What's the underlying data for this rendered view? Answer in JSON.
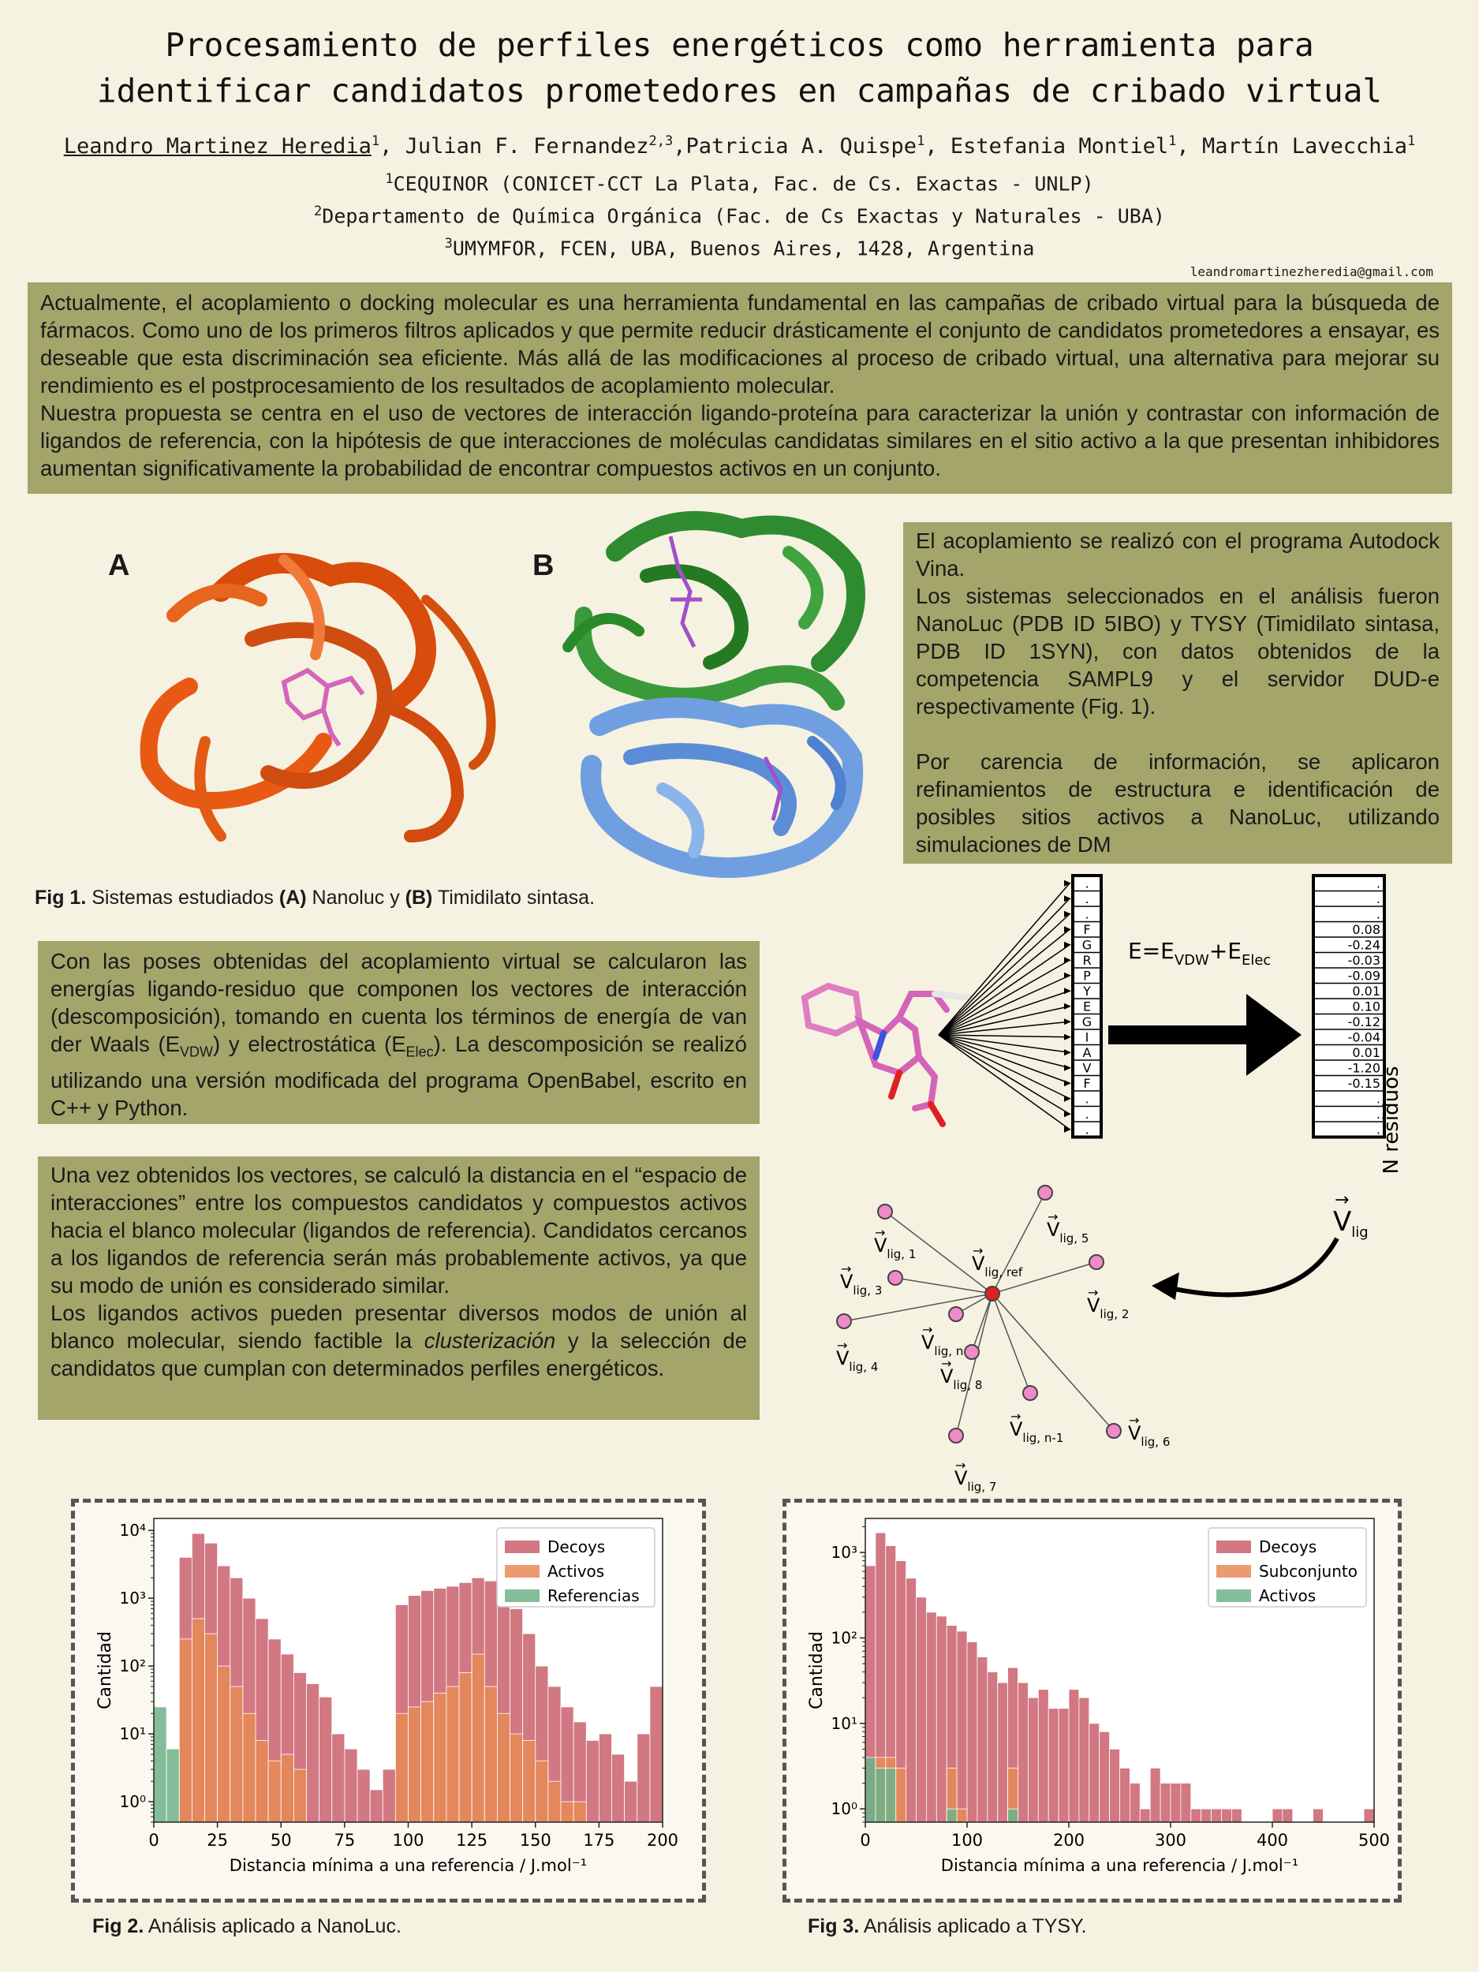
{
  "title": {
    "line1": "Procesamiento de perfiles energéticos como herramienta para",
    "line2": "identificar candidatos prometedores en campañas de cribado virtual"
  },
  "authors": [
    {
      "name": "Leandro Martinez Heredia",
      "sup": "1"
    },
    {
      "name": "Julian F. Fernandez",
      "sup": "2,3"
    },
    {
      "name": "Patricia A. Quispe",
      "sup": "1"
    },
    {
      "name": "Estefania Montiel",
      "sup": "1"
    },
    {
      "name": "Martín Lavecchia",
      "sup": "1"
    }
  ],
  "affiliations": [
    {
      "sup": "1",
      "text": "CEQUINOR (CONICET-CCT La Plata, Fac. de Cs. Exactas - UNLP)"
    },
    {
      "sup": "2",
      "text": "Departamento de Química Orgánica (Fac. de Cs Exactas y Naturales - UBA)"
    },
    {
      "sup": "3",
      "text": "UMYMFOR, FCEN, UBA, Buenos Aires, 1428, Argentina"
    }
  ],
  "email": "leandromartinezheredia@gmail.com",
  "intro": {
    "p1": "Actualmente, el acoplamiento o docking molecular es una herramienta fundamental en las campañas de cribado virtual para la búsqueda de fármacos. Como uno de los primeros filtros aplicados y que permite reducir drásticamente el conjunto de candidatos prometedores a ensayar, es deseable que esta discriminación sea eficiente. Más allá de las modificaciones al proceso de cribado virtual, una alternativa para mejorar su rendimiento es el postprocesamiento de los resultados de acoplamiento molecular.",
    "p2": "Nuestra propuesta se centra en el uso de vectores de interacción ligando-proteína para caracterizar la unión y contrastar con información de ligandos de referencia, con la hipótesis de que interacciones de moléculas candidatas similares en el sitio activo a la que presentan inhibidores aumentan significativamente la probabilidad de encontrar compuestos activos en un conjunto."
  },
  "docking_box": {
    "p1": "El acoplamiento se realizó con el programa Autodock Vina.",
    "p2": "Los sistemas seleccionados en el análisis fueron NanoLuc (PDB ID 5IBO) y TYSY (Timidilato sintasa, PDB ID 1SYN), con datos obtenidos de la competencia SAMPL9 y el servidor DUD-e respectivamente (Fig. 1).",
    "p3": "Por carencia de información, se aplicaron refinamientos de estructura e identificación de posibles sitios activos a NanoLuc, utilizando simulaciones de DM"
  },
  "fig1": {
    "label_a": "A",
    "label_b": "B",
    "caption_bold": "Fig 1.",
    "caption_t1": " Sistemas estudiados ",
    "caption_a": "(A)",
    "caption_t2": " Nanoluc y ",
    "caption_b": "(B)",
    "caption_t3": " Timidilato sintasa."
  },
  "decomp_box": {
    "t1": "Con las poses obtenidas del acoplamiento virtual se calcularon las energías ligando-residuo que componen los vectores de interacción (descomposición), tomando en cuenta los términos de energía de van der Waals (E",
    "sub1": "VDW",
    "t2": ") y electrostática (E",
    "sub2": "Elec",
    "t3": "). La descomposición se realizó utilizando una versión modificada del programa OpenBabel, escrito en C++ y Python."
  },
  "distance_box": {
    "p1": "Una vez obtenidos los vectores, se calculó la distancia en el “espacio de interacciones” entre los compuestos candidatos y compuestos activos hacia el blanco molecular (ligandos de referencia). Candidatos cercanos a los ligandos de referencia serán más probablemente activos, ya que su modo de unión es considerado similar.",
    "p2a": "Los ligandos activos pueden presentar diversos modos de unión al blanco molecular, siendo factible la ",
    "p2_em": "clusterización",
    "p2b": " y la selección de candidatos que cumplan con determinados perfiles energéticos."
  },
  "scheme": {
    "equation": "E=E_VDW+E_Elec",
    "residues": [
      ".",
      ".",
      ".",
      "F",
      "G",
      "R",
      "P",
      "Y",
      "E",
      "G",
      "I",
      "A",
      "V",
      "F",
      ".",
      ".",
      "."
    ],
    "values": [
      ".",
      ".",
      ".",
      "0.08",
      "-0.24",
      "-0.03",
      "-0.09",
      "0.01",
      "0.10",
      "-0.12",
      "-0.04",
      "0.01",
      "-1.20",
      "-0.15",
      ".",
      ".",
      "."
    ],
    "n_residuos": "N residuos",
    "vlig": "V",
    "vlig_sub": "lig",
    "ref_label": "V",
    "ref_sub": "lig, ref",
    "ligands": [
      {
        "sub": "lig, 1"
      },
      {
        "sub": "lig, 5"
      },
      {
        "sub": "lig, 3"
      },
      {
        "sub": "lig, 2"
      },
      {
        "sub": "lig, 4"
      },
      {
        "sub": "lig, n"
      },
      {
        "sub": "lig, 8"
      },
      {
        "sub": "lig, n-1"
      },
      {
        "sub": "lig, 6"
      },
      {
        "sub": "lig, 7"
      }
    ]
  },
  "fig2": {
    "caption_bold": "Fig 2.",
    "caption_text": " Análisis aplicado a NanoLuc.",
    "ylabel": "Cantidad",
    "xlabel": "Distancia mínima a una referencia / J.mol⁻¹",
    "legend": [
      "Decoys",
      "Activos",
      "Referencias"
    ]
  },
  "fig3": {
    "caption_bold": "Fig 3.",
    "caption_text": " Análisis aplicado a TYSY.",
    "ylabel": "Cantidad",
    "xlabel": "Distancia mínima a una referencia / J.mol⁻¹",
    "legend": [
      "Decoys",
      "Subconjunto",
      "Activos"
    ]
  },
  "chart_data": [
    {
      "type": "bar",
      "title": "",
      "xlabel": "Distancia mínima a una referencia / J.mol⁻¹",
      "ylabel": "Cantidad",
      "yscale": "log",
      "xlim": [
        0,
        200
      ],
      "ylim": [
        0.5,
        15000
      ],
      "x_ticks": [
        0,
        25,
        50,
        75,
        100,
        125,
        150,
        175,
        200
      ],
      "y_ticks": [
        "10⁰",
        "10¹",
        "10²",
        "10³",
        "10⁴"
      ],
      "bin_width": 5,
      "bin_starts": [
        0,
        5,
        10,
        15,
        20,
        25,
        30,
        35,
        40,
        45,
        50,
        55,
        60,
        65,
        70,
        75,
        80,
        85,
        90,
        95,
        100,
        105,
        110,
        115,
        120,
        125,
        130,
        135,
        140,
        145,
        150,
        155,
        160,
        165,
        170,
        175,
        180,
        185,
        190,
        195
      ],
      "legend_position": "top-right",
      "grid": false,
      "series": [
        {
          "name": "Decoys",
          "color": "#c9606c",
          "values": [
            0,
            0,
            4000,
            9000,
            6500,
            3000,
            2000,
            1000,
            500,
            250,
            150,
            80,
            55,
            35,
            10,
            6,
            3,
            1.5,
            3,
            800,
            1100,
            1300,
            1400,
            1500,
            1700,
            2000,
            1800,
            1200,
            700,
            300,
            100,
            50,
            25,
            15,
            8,
            10,
            5,
            2,
            10,
            50
          ]
        },
        {
          "name": "Activos",
          "color": "#e88a56",
          "values": [
            0,
            0,
            250,
            500,
            300,
            100,
            50,
            20,
            8,
            4,
            5,
            3,
            0,
            0,
            0,
            0,
            0,
            0,
            0,
            20,
            25,
            30,
            40,
            50,
            80,
            150,
            50,
            20,
            10,
            8,
            4,
            2,
            1,
            1,
            0,
            0,
            0,
            0,
            0,
            0
          ]
        },
        {
          "name": "Referencias",
          "color": "#6fb387",
          "values": [
            25,
            6,
            0,
            0,
            0,
            0,
            0,
            0,
            0,
            0,
            0,
            0,
            0,
            0,
            0,
            0,
            0,
            0,
            0,
            0,
            0,
            0,
            0,
            0,
            0,
            0,
            0,
            0,
            0,
            0,
            0,
            0,
            0,
            0,
            0,
            0,
            0,
            0,
            0,
            0
          ]
        }
      ]
    },
    {
      "type": "bar",
      "title": "",
      "xlabel": "Distancia mínima a una referencia / J.mol⁻¹",
      "ylabel": "Cantidad",
      "yscale": "log",
      "xlim": [
        0,
        500
      ],
      "ylim": [
        0.7,
        2500
      ],
      "x_ticks": [
        0,
        100,
        200,
        300,
        400,
        500
      ],
      "y_ticks": [
        "10⁰",
        "10¹",
        "10²",
        "10³"
      ],
      "bin_width": 10,
      "bin_starts": [
        0,
        10,
        20,
        30,
        40,
        50,
        60,
        70,
        80,
        90,
        100,
        110,
        120,
        130,
        140,
        150,
        160,
        170,
        180,
        190,
        200,
        210,
        220,
        230,
        240,
        250,
        260,
        270,
        280,
        290,
        300,
        310,
        320,
        330,
        340,
        350,
        360,
        370,
        380,
        390,
        400,
        410,
        420,
        430,
        440,
        450,
        460,
        470,
        480,
        490
      ],
      "legend_position": "top-right",
      "grid": false,
      "series": [
        {
          "name": "Decoys",
          "color": "#c9606c",
          "values": [
            700,
            1700,
            1200,
            800,
            500,
            300,
            200,
            180,
            140,
            120,
            90,
            60,
            40,
            30,
            45,
            30,
            20,
            25,
            15,
            15,
            25,
            20,
            10,
            8,
            5,
            3,
            2,
            1,
            3,
            2,
            2,
            2,
            1,
            1,
            1,
            1,
            1,
            0,
            0,
            0,
            1,
            1,
            0,
            0,
            1,
            0,
            0,
            0,
            0,
            1
          ]
        },
        {
          "name": "Subconjunto",
          "color": "#e88a56",
          "values": [
            0,
            4,
            4,
            3,
            0,
            0,
            0,
            0,
            3,
            1,
            0,
            0,
            0,
            0,
            3,
            0,
            0,
            0,
            0,
            0,
            0,
            0,
            0,
            0,
            0,
            0,
            0,
            0,
            0,
            0,
            0,
            0,
            0,
            0,
            0,
            0,
            0,
            0,
            0,
            0,
            0,
            0,
            0,
            0,
            0,
            0,
            0,
            0,
            0,
            0
          ]
        },
        {
          "name": "Activos",
          "color": "#6fb387",
          "values": [
            4,
            3,
            3,
            0,
            0,
            0,
            0,
            0,
            1,
            0,
            0,
            0,
            0,
            0,
            1,
            0,
            0,
            0,
            0,
            0,
            0,
            0,
            0,
            0,
            0,
            0,
            0,
            0,
            0,
            0,
            0,
            0,
            0,
            0,
            0,
            0,
            0,
            0,
            0,
            0,
            0,
            0,
            0,
            0,
            0,
            0,
            0,
            0,
            0,
            0
          ]
        }
      ]
    }
  ]
}
